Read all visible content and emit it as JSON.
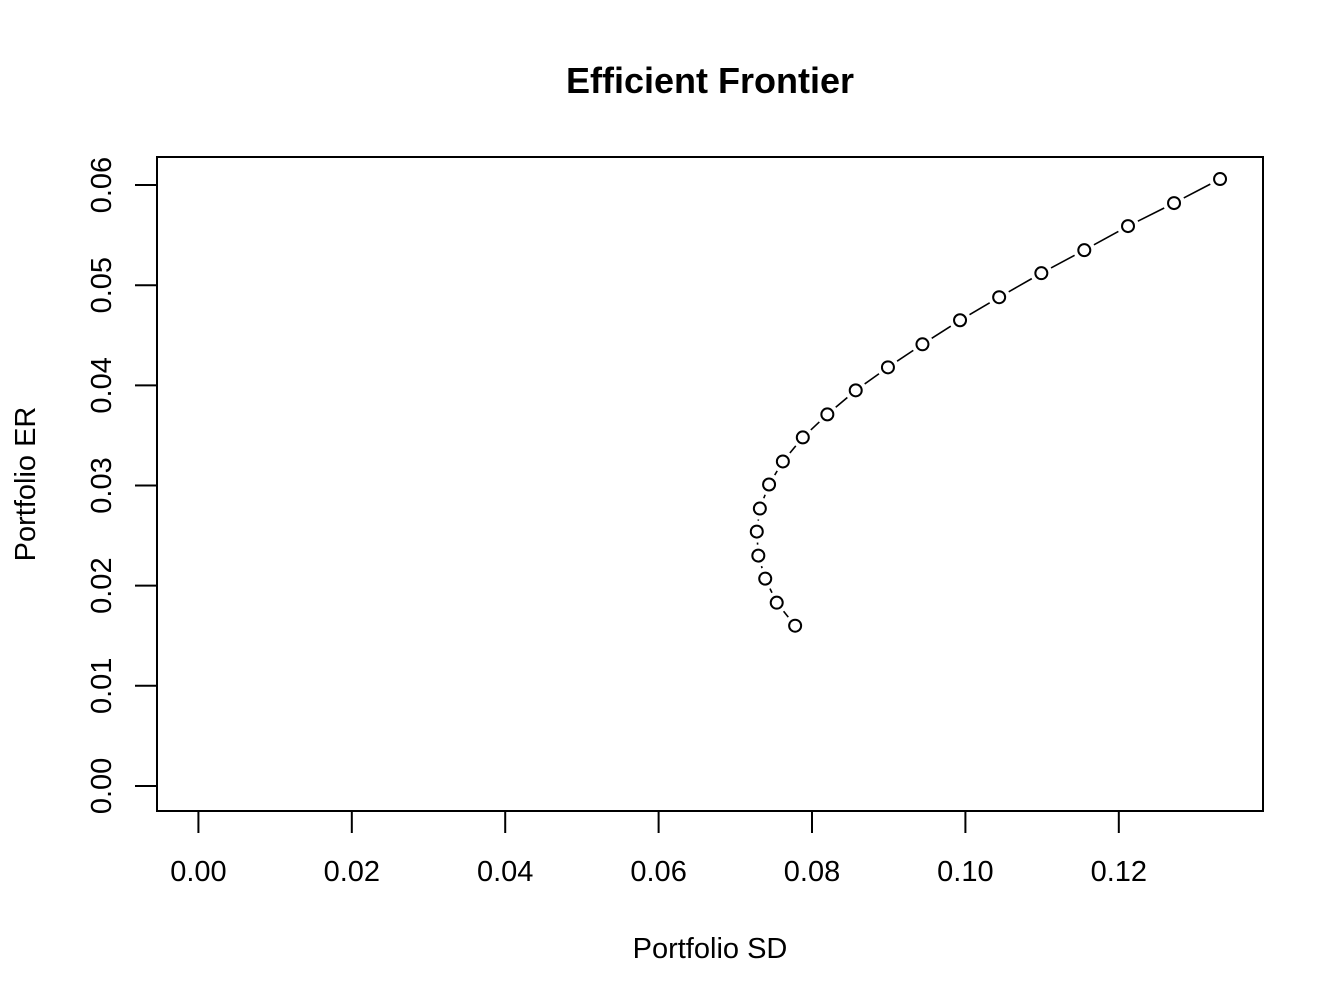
{
  "chart_data": {
    "type": "scatter",
    "title": "Efficient Frontier",
    "xlabel": "Portfolio SD",
    "ylabel": "Portfolio ER",
    "xlim": [
      -0.0054,
      0.1388
    ],
    "ylim": [
      -0.0025,
      0.0628
    ],
    "x_ticks": [
      0.0,
      0.02,
      0.04,
      0.06,
      0.08,
      0.1,
      0.12
    ],
    "x_tick_labels": [
      "0.00",
      "0.02",
      "0.04",
      "0.06",
      "0.08",
      "0.10",
      "0.12"
    ],
    "y_ticks": [
      0.0,
      0.01,
      0.02,
      0.03,
      0.04,
      0.05,
      0.06
    ],
    "y_tick_labels": [
      "0.00",
      "0.01",
      "0.02",
      "0.03",
      "0.04",
      "0.05",
      "0.06"
    ],
    "grid": false,
    "legend": "none",
    "marker": "open-circle",
    "connector": "dashed-line",
    "marker_color": "#000000",
    "series": [
      {
        "x": [
          0.0778,
          0.0754,
          0.0739,
          0.073,
          0.0728,
          0.0732,
          0.0744,
          0.0762,
          0.0788,
          0.082,
          0.0857,
          0.0899,
          0.0944,
          0.0993,
          0.1044,
          0.1099,
          0.1155,
          0.1212,
          0.1272,
          0.1332
        ],
        "y": [
          0.016,
          0.0183,
          0.0207,
          0.023,
          0.0254,
          0.0277,
          0.0301,
          0.0324,
          0.0348,
          0.0371,
          0.0395,
          0.0418,
          0.0441,
          0.0465,
          0.0488,
          0.0512,
          0.0535,
          0.0559,
          0.0582,
          0.0606
        ]
      }
    ]
  }
}
